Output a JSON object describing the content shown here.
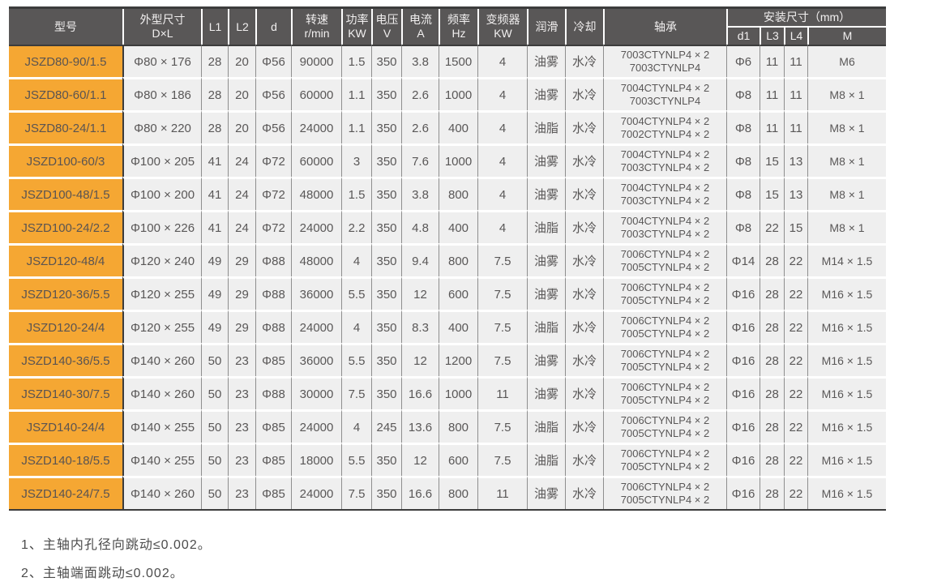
{
  "table": {
    "headers": {
      "model": "型号",
      "dim": {
        "line1": "外型尺寸",
        "line2": "D×L"
      },
      "l1": "L1",
      "l2": "L2",
      "d": "d",
      "speed": {
        "line1": "转速",
        "line2": "r/min"
      },
      "power": {
        "line1": "功率",
        "line2": "KW"
      },
      "voltage": {
        "line1": "电压",
        "line2": "V"
      },
      "current": {
        "line1": "电流",
        "line2": "A"
      },
      "freq": {
        "line1": "频率",
        "line2": "Hz"
      },
      "inverter": {
        "line1": "变频器",
        "line2": "KW"
      },
      "lub": "润滑",
      "cool": "冷却",
      "bearing": "轴承",
      "mounting_group": "安装尺寸（mm）",
      "d1": "d1",
      "l3": "L3",
      "l4": "L4",
      "m": "M"
    },
    "column_order": [
      "model",
      "dim",
      "l1",
      "l2",
      "d",
      "speed",
      "power",
      "voltage",
      "current",
      "freq",
      "inverter",
      "lub",
      "cool",
      "bearing",
      "d1",
      "l3",
      "l4",
      "m"
    ],
    "rows": [
      {
        "model": "JSZD80-90/1.5",
        "dim": "Φ80 × 176",
        "l1": "28",
        "l2": "20",
        "d": "Φ56",
        "speed": "90000",
        "power": "1.5",
        "voltage": "350",
        "current": "3.8",
        "freq": "1500",
        "inverter": "4",
        "lub": "油雾",
        "cool": "水冷",
        "bearing": [
          "7003CTYNLP4 × 2",
          "7003CTYNLP4"
        ],
        "d1": "Φ6",
        "l3": "11",
        "l4": "11",
        "m": "M6"
      },
      {
        "model": "JSZD80-60/1.1",
        "dim": "Φ80 × 186",
        "l1": "28",
        "l2": "20",
        "d": "Φ56",
        "speed": "60000",
        "power": "1.1",
        "voltage": "350",
        "current": "2.6",
        "freq": "1000",
        "inverter": "4",
        "lub": "油雾",
        "cool": "水冷",
        "bearing": [
          "7004CTYNLP4 × 2",
          "7003CTYNLP4"
        ],
        "d1": "Φ8",
        "l3": "11",
        "l4": "11",
        "m": "M8 × 1"
      },
      {
        "model": "JSZD80-24/1.1",
        "dim": "Φ80 × 220",
        "l1": "28",
        "l2": "20",
        "d": "Φ56",
        "speed": "24000",
        "power": "1.1",
        "voltage": "350",
        "current": "2.6",
        "freq": "400",
        "inverter": "4",
        "lub": "油脂",
        "cool": "水冷",
        "bearing": [
          "7004CTYNLP4 × 2",
          "7002CTYNLP4 × 2"
        ],
        "d1": "Φ8",
        "l3": "11",
        "l4": "11",
        "m": "M8 × 1"
      },
      {
        "model": "JSZD100-60/3",
        "dim": "Φ100 × 205",
        "l1": "41",
        "l2": "24",
        "d": "Φ72",
        "speed": "60000",
        "power": "3",
        "voltage": "350",
        "current": "7.6",
        "freq": "1000",
        "inverter": "4",
        "lub": "油雾",
        "cool": "水冷",
        "bearing": [
          "7004CTYNLP4 × 2",
          "7003CTYNLP4 × 2"
        ],
        "d1": "Φ8",
        "l3": "15",
        "l4": "13",
        "m": "M8 × 1"
      },
      {
        "model": "JSZD100-48/1.5",
        "dim": "Φ100 × 200",
        "l1": "41",
        "l2": "24",
        "d": "Φ72",
        "speed": "48000",
        "power": "1.5",
        "voltage": "350",
        "current": "3.8",
        "freq": "800",
        "inverter": "4",
        "lub": "油雾",
        "cool": "水冷",
        "bearing": [
          "7004CTYNLP4 × 2",
          "7003CTYNLP4 × 2"
        ],
        "d1": "Φ8",
        "l3": "15",
        "l4": "13",
        "m": "M8 × 1"
      },
      {
        "model": "JSZD100-24/2.2",
        "dim": "Φ100 × 226",
        "l1": "41",
        "l2": "24",
        "d": "Φ72",
        "speed": "24000",
        "power": "2.2",
        "voltage": "350",
        "current": "4.8",
        "freq": "400",
        "inverter": "4",
        "lub": "油脂",
        "cool": "水冷",
        "bearing": [
          "7004CTYNLP4 × 2",
          "7003CTYNLP4 × 2"
        ],
        "d1": "Φ8",
        "l3": "22",
        "l4": "15",
        "m": "M8 × 1"
      },
      {
        "model": "JSZD120-48/4",
        "dim": "Φ120 × 240",
        "l1": "49",
        "l2": "29",
        "d": "Φ88",
        "speed": "48000",
        "power": "4",
        "voltage": "350",
        "current": "9.4",
        "freq": "800",
        "inverter": "7.5",
        "lub": "油雾",
        "cool": "水冷",
        "bearing": [
          "7006CTYNLP4 × 2",
          "7005CTYNLP4 × 2"
        ],
        "d1": "Φ14",
        "l3": "28",
        "l4": "22",
        "m": "M14 × 1.5"
      },
      {
        "model": "JSZD120-36/5.5",
        "dim": "Φ120 × 255",
        "l1": "49",
        "l2": "29",
        "d": "Φ88",
        "speed": "36000",
        "power": "5.5",
        "voltage": "350",
        "current": "12",
        "freq": "600",
        "inverter": "7.5",
        "lub": "油雾",
        "cool": "水冷",
        "bearing": [
          "7006CTYNLP4 × 2",
          "7005CTYNLP4 × 2"
        ],
        "d1": "Φ16",
        "l3": "28",
        "l4": "22",
        "m": "M16 × 1.5"
      },
      {
        "model": "JSZD120-24/4",
        "dim": "Φ120 × 255",
        "l1": "49",
        "l2": "29",
        "d": "Φ88",
        "speed": "24000",
        "power": "4",
        "voltage": "350",
        "current": "8.3",
        "freq": "400",
        "inverter": "7.5",
        "lub": "油脂",
        "cool": "水冷",
        "bearing": [
          "7006CTYNLP4 × 2",
          "7005CTYNLP4 × 2"
        ],
        "d1": "Φ16",
        "l3": "28",
        "l4": "22",
        "m": "M16 × 1.5"
      },
      {
        "model": "JSZD140-36/5.5",
        "dim": "Φ140 × 260",
        "l1": "50",
        "l2": "23",
        "d": "Φ85",
        "speed": "36000",
        "power": "5.5",
        "voltage": "350",
        "current": "12",
        "freq": "1200",
        "inverter": "7.5",
        "lub": "油雾",
        "cool": "水冷",
        "bearing": [
          "7006CTYNLP4 × 2",
          "7005CTYNLP4 × 2"
        ],
        "d1": "Φ16",
        "l3": "28",
        "l4": "22",
        "m": "M16 × 1.5"
      },
      {
        "model": "JSZD140-30/7.5",
        "dim": "Φ140 × 260",
        "l1": "50",
        "l2": "23",
        "d": "Φ88",
        "speed": "30000",
        "power": "7.5",
        "voltage": "350",
        "current": "16.6",
        "freq": "1000",
        "inverter": "11",
        "lub": "油雾",
        "cool": "水冷",
        "bearing": [
          "7006CTYNLP4 × 2",
          "7005CTYNLP4 × 2"
        ],
        "d1": "Φ16",
        "l3": "28",
        "l4": "22",
        "m": "M16 × 1.5"
      },
      {
        "model": "JSZD140-24/4",
        "dim": "Φ140 × 255",
        "l1": "50",
        "l2": "23",
        "d": "Φ85",
        "speed": "24000",
        "power": "4",
        "voltage": "245",
        "current": "13.6",
        "freq": "800",
        "inverter": "7.5",
        "lub": "油脂",
        "cool": "水冷",
        "bearing": [
          "7006CTYNLP4 × 2",
          "7005CTYNLP4 × 2"
        ],
        "d1": "Φ16",
        "l3": "28",
        "l4": "22",
        "m": "M16 × 1.5"
      },
      {
        "model": "JSZD140-18/5.5",
        "dim": "Φ140 × 255",
        "l1": "50",
        "l2": "23",
        "d": "Φ85",
        "speed": "18000",
        "power": "5.5",
        "voltage": "350",
        "current": "12",
        "freq": "600",
        "inverter": "7.5",
        "lub": "油脂",
        "cool": "水冷",
        "bearing": [
          "7006CTYNLP4 × 2",
          "7005CTYNLP4 × 2"
        ],
        "d1": "Φ16",
        "l3": "28",
        "l4": "22",
        "m": "M16 × 1.5"
      },
      {
        "model": "JSZD140-24/7.5",
        "dim": "Φ140 × 260",
        "l1": "50",
        "l2": "23",
        "d": "Φ85",
        "speed": "24000",
        "power": "7.5",
        "voltage": "350",
        "current": "16.6",
        "freq": "800",
        "inverter": "11",
        "lub": "油雾",
        "cool": "水冷",
        "bearing": [
          "7006CTYNLP4 × 2",
          "7005CTYNLP4 × 2"
        ],
        "d1": "Φ16",
        "l3": "28",
        "l4": "22",
        "m": "M16 × 1.5"
      }
    ]
  },
  "notes": [
    "1、主轴内孔径向跳动≤0.002。",
    "2、主轴端面跳动≤0.002。"
  ],
  "colors": {
    "header_bg": "#595757",
    "header_text": "#f1efef",
    "model_cell_bg": "#f5a733",
    "data_cell_bg": "#efefef",
    "dark_border": "#3c3c3c",
    "grid_line": "#8e8e8e"
  }
}
